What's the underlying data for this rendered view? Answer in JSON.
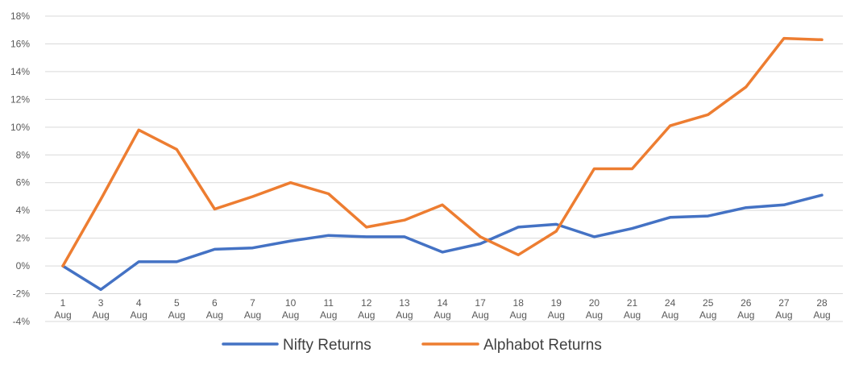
{
  "chart_data": {
    "type": "line",
    "title": "",
    "xlabel": "",
    "ylabel": "",
    "ylim": [
      -4,
      18
    ],
    "yticks": [
      -4,
      -2,
      0,
      2,
      4,
      6,
      8,
      10,
      12,
      14,
      16,
      18
    ],
    "ytick_labels": [
      "-4%",
      "-2%",
      "0%",
      "2%",
      "4%",
      "6%",
      "8%",
      "10%",
      "12%",
      "14%",
      "16%",
      "18%"
    ],
    "y_unit": "%",
    "grid": true,
    "legend_position": "bottom",
    "categories": [
      [
        "1",
        "Aug"
      ],
      [
        "3",
        "Aug"
      ],
      [
        "4",
        "Aug"
      ],
      [
        "5",
        "Aug"
      ],
      [
        "6",
        "Aug"
      ],
      [
        "7",
        "Aug"
      ],
      [
        "10",
        "Aug"
      ],
      [
        "11",
        "Aug"
      ],
      [
        "12",
        "Aug"
      ],
      [
        "13",
        "Aug"
      ],
      [
        "14",
        "Aug"
      ],
      [
        "17",
        "Aug"
      ],
      [
        "18",
        "Aug"
      ],
      [
        "19",
        "Aug"
      ],
      [
        "20",
        "Aug"
      ],
      [
        "21",
        "Aug"
      ],
      [
        "24",
        "Aug"
      ],
      [
        "25",
        "Aug"
      ],
      [
        "26",
        "Aug"
      ],
      [
        "27",
        "Aug"
      ],
      [
        "28",
        "Aug"
      ]
    ],
    "series": [
      {
        "name": "Nifty Returns",
        "color": "#4472C4",
        "values": [
          0.0,
          -1.7,
          0.3,
          0.3,
          1.2,
          1.3,
          1.8,
          2.2,
          2.1,
          2.1,
          1.0,
          1.6,
          2.8,
          3.0,
          2.1,
          2.7,
          3.5,
          3.6,
          4.2,
          4.4,
          5.1
        ]
      },
      {
        "name": "Alphabot Returns",
        "color": "#ED7D31",
        "values": [
          0.0,
          4.8,
          9.8,
          8.4,
          4.1,
          5.0,
          6.0,
          5.2,
          2.8,
          3.3,
          4.4,
          2.1,
          0.8,
          2.5,
          7.0,
          7.0,
          10.1,
          10.9,
          12.9,
          16.4,
          16.3
        ]
      }
    ]
  }
}
